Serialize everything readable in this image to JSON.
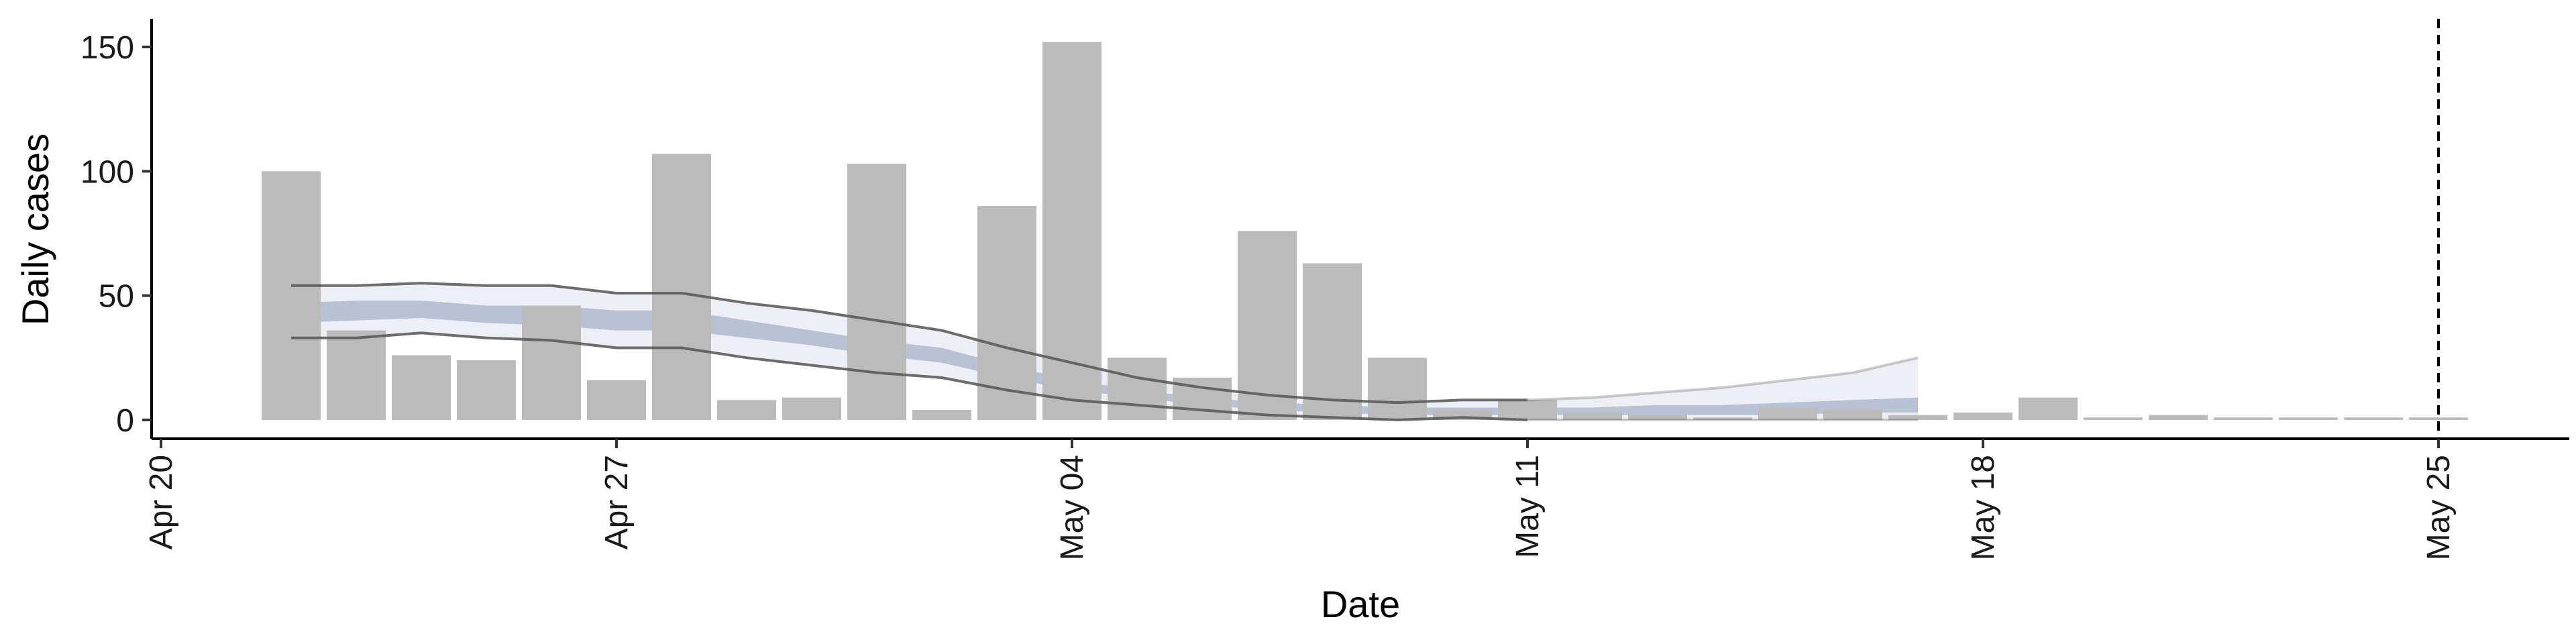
{
  "chart_data": {
    "type": "bar",
    "xlabel": "Date",
    "ylabel": "Daily cases",
    "ylim": [
      -7,
      160
    ],
    "yticks": [
      0,
      50,
      100,
      150
    ],
    "xlim": [
      "2020-04-20",
      "2020-05-28"
    ],
    "xticks": [
      {
        "date": "2020-04-20",
        "label": "Apr 20"
      },
      {
        "date": "2020-04-27",
        "label": "Apr 27"
      },
      {
        "date": "2020-05-04",
        "label": "May 04"
      },
      {
        "date": "2020-05-11",
        "label": "May 11"
      },
      {
        "date": "2020-05-18",
        "label": "May 18"
      },
      {
        "date": "2020-05-25",
        "label": "May 25"
      }
    ],
    "grid": false,
    "bars": {
      "color": "#bbbbbb",
      "dates": [
        "2020-04-22",
        "2020-04-23",
        "2020-04-24",
        "2020-04-25",
        "2020-04-26",
        "2020-04-27",
        "2020-04-28",
        "2020-04-29",
        "2020-04-30",
        "2020-05-01",
        "2020-05-02",
        "2020-05-03",
        "2020-05-04",
        "2020-05-05",
        "2020-05-06",
        "2020-05-07",
        "2020-05-08",
        "2020-05-09",
        "2020-05-10",
        "2020-05-11",
        "2020-05-12",
        "2020-05-13",
        "2020-05-14",
        "2020-05-15",
        "2020-05-16",
        "2020-05-17",
        "2020-05-18",
        "2020-05-19",
        "2020-05-20",
        "2020-05-21",
        "2020-05-22",
        "2020-05-23",
        "2020-05-24",
        "2020-05-25"
      ],
      "values": [
        100,
        36,
        26,
        24,
        46,
        16,
        107,
        8,
        9,
        103,
        4,
        86,
        152,
        25,
        17,
        76,
        63,
        25,
        4,
        8,
        3,
        2,
        1,
        5,
        4,
        2,
        3,
        9,
        1,
        2,
        1,
        1,
        1,
        1
      ]
    },
    "estimate": {
      "color": "#8e9bbb",
      "dates": [
        "2020-04-22",
        "2020-04-23",
        "2020-04-24",
        "2020-04-25",
        "2020-04-26",
        "2020-04-27",
        "2020-04-28",
        "2020-04-29",
        "2020-04-30",
        "2020-05-01",
        "2020-05-02",
        "2020-05-03",
        "2020-05-04",
        "2020-05-05",
        "2020-05-06",
        "2020-05-07",
        "2020-05-08",
        "2020-05-09",
        "2020-05-10",
        "2020-05-11",
        "2020-05-12",
        "2020-05-13",
        "2020-05-14",
        "2020-05-15",
        "2020-05-16",
        "2020-05-17"
      ],
      "outer_lower": [
        33,
        33,
        35,
        33,
        32,
        29,
        29,
        25,
        22,
        19,
        17,
        12,
        8,
        6,
        4,
        2,
        1,
        0,
        1,
        0,
        0,
        0,
        0,
        0,
        0,
        0
      ],
      "outer_upper": [
        54,
        54,
        55,
        54,
        54,
        51,
        51,
        47,
        44,
        40,
        36,
        29,
        23,
        17,
        13,
        10,
        8,
        7,
        8,
        8,
        9,
        11,
        13,
        16,
        19,
        25
      ],
      "inner_lower": [
        39,
        40,
        41,
        39,
        38,
        36,
        36,
        33,
        30,
        26,
        23,
        17,
        12,
        9,
        6,
        4,
        3,
        2,
        2,
        2,
        2,
        2,
        2,
        2,
        3,
        3
      ],
      "inner_upper": [
        47,
        48,
        48,
        46,
        46,
        44,
        44,
        40,
        36,
        32,
        29,
        22,
        16,
        12,
        9,
        7,
        6,
        5,
        5,
        5,
        5,
        6,
        6,
        7,
        8,
        9
      ],
      "lines_until": "2020-05-11",
      "interval_lines_from": "2020-05-11"
    },
    "vline": {
      "date": "2020-05-25",
      "style": "dashed"
    }
  }
}
